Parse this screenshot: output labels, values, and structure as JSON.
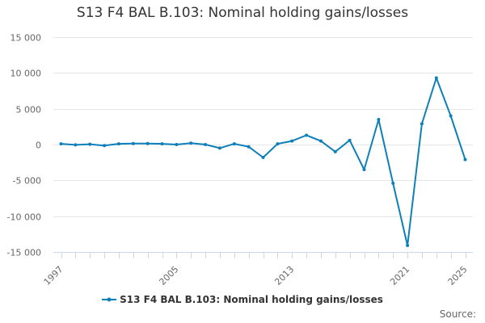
{
  "chart_data": {
    "type": "line",
    "title": "S13 F4 BAL B.103: Nominal holding gains/losses",
    "x": [
      1997,
      1998,
      1999,
      2000,
      2001,
      2002,
      2003,
      2004,
      2005,
      2006,
      2007,
      2008,
      2009,
      2010,
      2011,
      2012,
      2013,
      2014,
      2015,
      2016,
      2017,
      2018,
      2019,
      2020,
      2021,
      2022,
      2023,
      2024,
      2025
    ],
    "x_tick_labels": [
      "1997",
      "2005",
      "2013",
      "2021",
      "2025"
    ],
    "series": [
      {
        "name": "S13 F4 BAL B.103: Nominal holding gains/losses",
        "color": "#0e80b9",
        "values": [
          100,
          -50,
          50,
          -150,
          100,
          150,
          150,
          100,
          0,
          200,
          0,
          -500,
          100,
          -300,
          -1800,
          100,
          500,
          1300,
          500,
          -1000,
          600,
          -3500,
          3500,
          -5400,
          -14100,
          2900,
          9300,
          4000,
          -2100
        ]
      }
    ],
    "y_ticks": [
      -15000,
      -10000,
      -5000,
      0,
      5000,
      10000,
      15000
    ],
    "y_tick_labels": [
      "-15 000",
      "-10 000",
      "-5 000",
      "0",
      "5 000",
      "10 000",
      "15 000"
    ],
    "ylim": [
      -15000,
      15000
    ],
    "xlim": [
      1997,
      2025
    ],
    "grid": true,
    "legend": "bottom-center",
    "xlabel": "",
    "ylabel": ""
  },
  "legend_label": "S13 F4 BAL B.103: Nominal holding gains/losses",
  "source_label": "Source:"
}
